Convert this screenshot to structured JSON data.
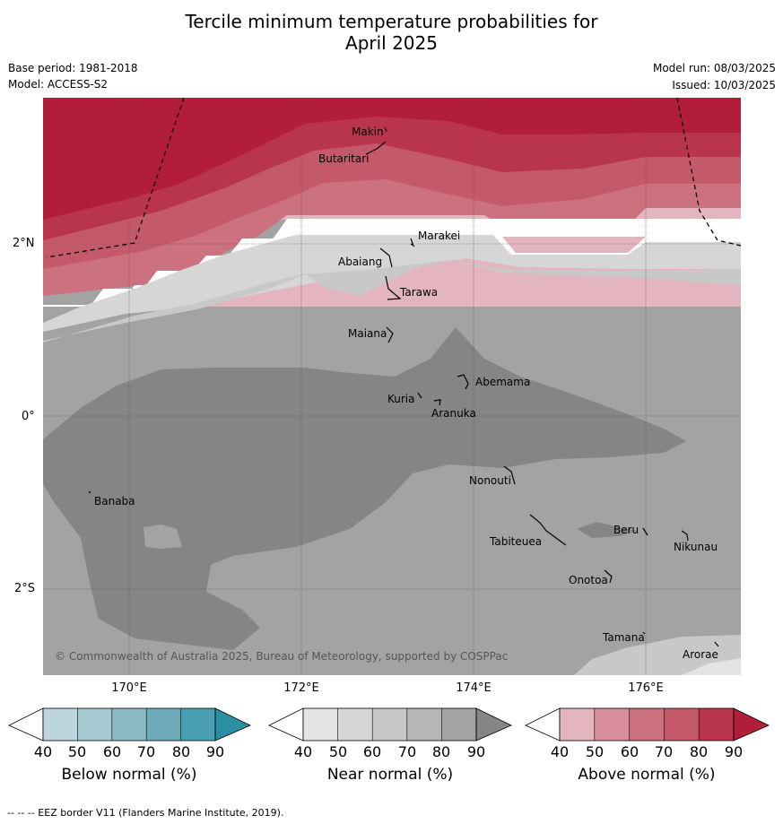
{
  "title_line1": "Tercile minimum temperature probabilities for",
  "title_line2": "April 2025",
  "base_period": "Base period: 1981-2018",
  "model": "Model: ACCESS-S2",
  "model_run": "Model run: 08/03/2025",
  "issued": "Issued: 10/03/2025",
  "copyright": "© Commonwealth of Australia 2025, Bureau of Meteorology, supported by COSPPac",
  "footnote": "--  --  -- EEZ border V11 (Flanders Marine Institute, 2019).",
  "lon_labels": [
    "170°E",
    "172°E",
    "174°E",
    "176°E"
  ],
  "lat_labels": [
    "2°N",
    "0°",
    "2°S"
  ],
  "places": [
    "Makin",
    "Butaritari",
    "Marakei",
    "Abaiang",
    "Tarawa",
    "Maiana",
    "Abemama",
    "Kuria",
    "Aranuka",
    "Nonouti",
    "Banaba",
    "Beru",
    "Nikunau",
    "Tabiteuea",
    "Onotoa",
    "Tamana",
    "Arorae"
  ],
  "colorbars": [
    {
      "title": "Below normal (%)",
      "colors": [
        "#bdd5de",
        "#a6c8d2",
        "#8cb9c6",
        "#6eaab9",
        "#4aa0b2",
        "#2a8fa3"
      ]
    },
    {
      "title": "Near normal (%)",
      "colors": [
        "#e3e3e3",
        "#d6d6d6",
        "#c8c8c8",
        "#b6b6b6",
        "#a3a3a3",
        "#858585"
      ]
    },
    {
      "title": "Above normal (%)",
      "colors": [
        "#e3b5be",
        "#d98f9b",
        "#cc717e",
        "#c45a69",
        "#b9354b",
        "#b21d3a"
      ]
    }
  ],
  "colorbar_ticks": [
    "40",
    "50",
    "60",
    "70",
    "80",
    "90"
  ]
}
